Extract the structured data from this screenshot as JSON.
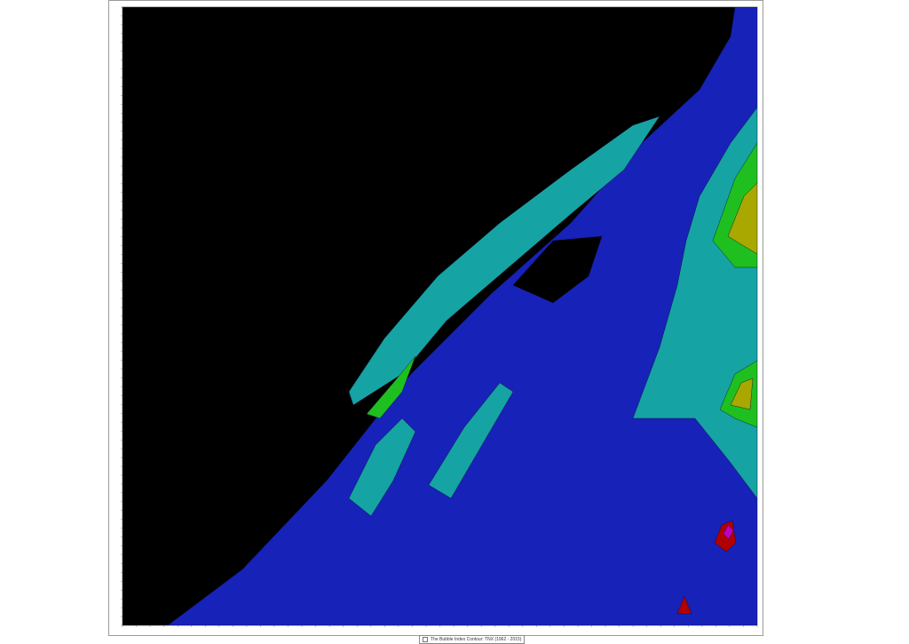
{
  "legend": {
    "caption": "The Bubble Index Contour: TNX (1962 - 2015)"
  },
  "chart_data": {
    "type": "heatmap",
    "title": "",
    "xlabel": "",
    "ylabel": "",
    "grid": false,
    "legend_placement": "bottom-center",
    "colorbar": {
      "placement": "right",
      "colors": [
        "#000000",
        "#111199",
        "#0c1db0",
        "#1a2fcc",
        "#008b8b",
        "#129a9a",
        "#1fb1b1",
        "#2fd0cf",
        "#0c8a0c",
        "#17a417",
        "#21bb21",
        "#2fd02f",
        "#8c8c00",
        "#a6a600",
        "#c0c000",
        "#dada10",
        "#8b0000",
        "#b00000",
        "#d40000",
        "#ff0000",
        "#8c008c",
        "#a800a8",
        "#c400c4",
        "#e000e0"
      ]
    },
    "palette": {
      "background": "#000000",
      "blue": "#1722b8",
      "teal": "#16a3a3",
      "green": "#1fbf1f",
      "olive": "#a8a800",
      "red": "#b00000",
      "magenta": "#c000c0"
    }
  }
}
